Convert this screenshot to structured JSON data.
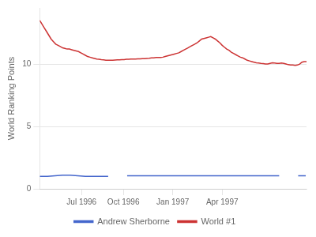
{
  "chart_data": {
    "type": "line",
    "ylabel": "World Ranking Points",
    "xlim": [
      0,
      351
    ],
    "xticks": [
      {
        "value": 55,
        "label": "Jul 1996"
      },
      {
        "value": 110,
        "label": "Oct 1996"
      },
      {
        "value": 175,
        "label": "Jan 1997"
      },
      {
        "value": 240,
        "label": "Apr 1997"
      }
    ],
    "ylim": [
      0,
      14.5
    ],
    "yticks": [
      0,
      5,
      10
    ],
    "grid": true,
    "legend": "bottom",
    "series": [
      {
        "name": "Andrew Sherborne",
        "color": "#4466cc",
        "x": [
          0,
          10,
          20,
          30,
          40,
          50,
          60,
          70,
          80,
          90,
          null,
          115,
          125,
          135,
          145,
          155,
          165,
          175,
          185,
          195,
          205,
          215,
          225,
          235,
          245,
          255,
          265,
          275,
          285,
          295,
          305,
          315,
          null,
          340,
          350
        ],
        "values": [
          1.0,
          1.0,
          1.05,
          1.1,
          1.1,
          1.05,
          1.0,
          1.0,
          1.0,
          1.0,
          null,
          1.05,
          1.05,
          1.05,
          1.05,
          1.05,
          1.05,
          1.05,
          1.05,
          1.05,
          1.05,
          1.05,
          1.05,
          1.05,
          1.05,
          1.05,
          1.05,
          1.05,
          1.05,
          1.05,
          1.05,
          1.05,
          null,
          1.05,
          1.05
        ]
      },
      {
        "name": "World #1",
        "color": "#cc3333",
        "x": [
          0,
          3,
          6,
          9,
          12,
          15,
          18,
          21,
          24,
          27,
          30,
          33,
          36,
          39,
          42,
          45,
          48,
          51,
          54,
          57,
          60,
          63,
          66,
          69,
          72,
          75,
          78,
          81,
          84,
          87,
          90,
          93,
          96,
          99,
          102,
          105,
          108,
          111,
          114,
          117,
          120,
          123,
          126,
          129,
          132,
          135,
          138,
          141,
          144,
          147,
          150,
          153,
          156,
          159,
          162,
          165,
          168,
          171,
          174,
          177,
          180,
          183,
          186,
          189,
          192,
          195,
          198,
          201,
          204,
          207,
          210,
          213,
          216,
          219,
          222,
          225,
          228,
          231,
          234,
          237,
          240,
          243,
          246,
          249,
          252,
          255,
          258,
          261,
          264,
          267,
          270,
          273,
          276,
          279,
          282,
          285,
          288,
          291,
          294,
          297,
          300,
          303,
          306,
          309,
          312,
          315,
          318,
          321,
          324,
          327,
          330,
          333,
          336,
          339,
          342,
          345,
          348,
          351
        ],
        "values": [
          13.5,
          13.2,
          12.9,
          12.6,
          12.3,
          12.0,
          11.8,
          11.6,
          11.5,
          11.4,
          11.3,
          11.25,
          11.2,
          11.2,
          11.15,
          11.1,
          11.05,
          11.0,
          10.9,
          10.8,
          10.7,
          10.6,
          10.55,
          10.5,
          10.45,
          10.4,
          10.38,
          10.35,
          10.33,
          10.31,
          10.3,
          10.3,
          10.3,
          10.32,
          10.33,
          10.33,
          10.35,
          10.35,
          10.38,
          10.38,
          10.4,
          10.4,
          10.4,
          10.42,
          10.42,
          10.43,
          10.43,
          10.45,
          10.47,
          10.5,
          10.5,
          10.52,
          10.52,
          10.52,
          10.55,
          10.6,
          10.65,
          10.7,
          10.75,
          10.8,
          10.85,
          10.9,
          11.0,
          11.1,
          11.2,
          11.3,
          11.4,
          11.5,
          11.6,
          11.7,
          11.85,
          12.0,
          12.05,
          12.1,
          12.15,
          12.2,
          12.1,
          12.0,
          11.85,
          11.7,
          11.5,
          11.35,
          11.2,
          11.1,
          10.95,
          10.85,
          10.75,
          10.65,
          10.55,
          10.5,
          10.4,
          10.3,
          10.25,
          10.2,
          10.15,
          10.1,
          10.08,
          10.05,
          10.03,
          10.0,
          10.0,
          10.05,
          10.1,
          10.08,
          10.05,
          10.05,
          10.08,
          10.05,
          10.0,
          9.95,
          9.93,
          9.92,
          9.9,
          9.92,
          10.0,
          10.15,
          10.2,
          10.2
        ]
      }
    ]
  }
}
